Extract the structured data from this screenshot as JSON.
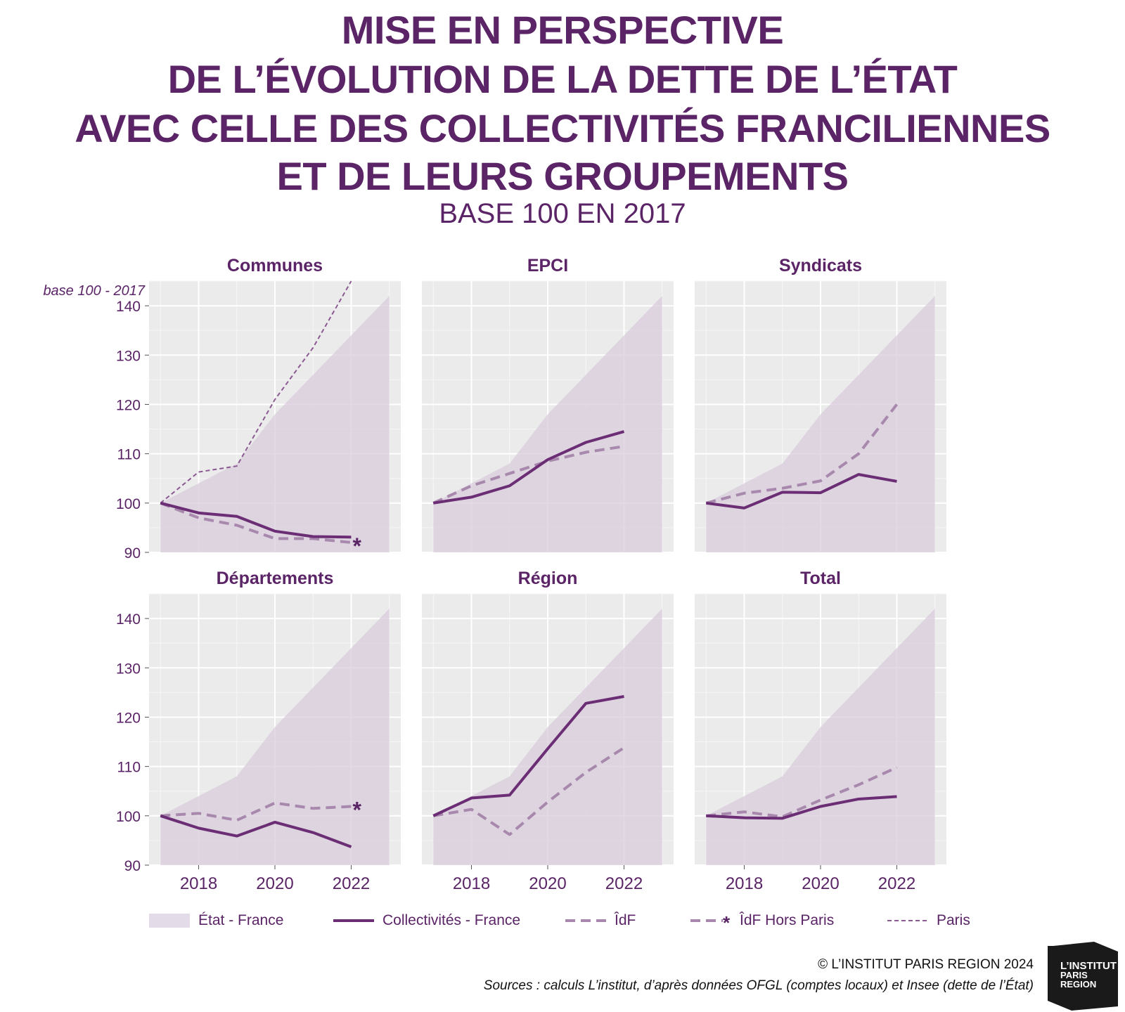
{
  "header": {
    "title_lines": [
      "MISE EN PERSPECTIVE",
      "DE L’ÉVOLUTION DE LA DETTE DE L’ÉTAT",
      "AVEC CELLE DES COLLECTIVITÉS FRANCILIENNES",
      "ET DE LEURS GROUPEMENTS"
    ],
    "subtitle": "BASE 100 EN 2017"
  },
  "colors": {
    "primary": "#5a2466",
    "line_collectivites": "#6b2d74",
    "line_idf": "#a889ad",
    "line_paris": "#8b5a92",
    "area_etat": "#d8ccdc",
    "panel_bg": "#ebebeb",
    "grid": "#ffffff"
  },
  "chart_data": {
    "type": "line",
    "layout": "small-multiples 2x3",
    "ylabel": "base 100 - 2017",
    "ylim": [
      90,
      145
    ],
    "xlim": [
      2016.7,
      2023.3
    ],
    "yticks": [
      90,
      100,
      110,
      120,
      130,
      140
    ],
    "xticks": [
      2018,
      2020,
      2022
    ],
    "grid": true,
    "legend_position": "bottom",
    "legend": [
      {
        "key": "etat",
        "label": "État - France"
      },
      {
        "key": "coll",
        "label": "Collectivités - France"
      },
      {
        "key": "idf",
        "label": "ÎdF"
      },
      {
        "key": "idfhp",
        "label": "ÎdF Hors Paris"
      },
      {
        "key": "paris",
        "label": "Paris"
      }
    ],
    "etat_france": {
      "x": [
        2017,
        2018,
        2019,
        2020,
        2021,
        2022,
        2023
      ],
      "values": [
        100,
        104,
        108,
        118,
        126,
        134,
        142
      ]
    },
    "panels": [
      {
        "title": "Communes",
        "series": [
          {
            "key": "coll",
            "x": [
              2017,
              2018,
              2019,
              2020,
              2021,
              2022
            ],
            "values": [
              100,
              98,
              97.3,
              94.3,
              93.2,
              93.1
            ]
          },
          {
            "key": "idfhp",
            "x": [
              2017,
              2018,
              2019,
              2020,
              2021,
              2022
            ],
            "values": [
              100,
              97,
              95.5,
              92.8,
              92.8,
              92
            ]
          },
          {
            "key": "paris",
            "x": [
              2017,
              2018,
              2019,
              2020,
              2021,
              2022
            ],
            "values": [
              100,
              106.3,
              107.5,
              121,
              131.5,
              145.5
            ]
          }
        ],
        "marker_star_on": "idfhp"
      },
      {
        "title": "EPCI",
        "series": [
          {
            "key": "coll",
            "x": [
              2017,
              2018,
              2019,
              2020,
              2021,
              2022
            ],
            "values": [
              100,
              101.2,
              103.5,
              108.8,
              112.3,
              114.5
            ]
          },
          {
            "key": "idf",
            "x": [
              2017,
              2018,
              2019,
              2020,
              2021,
              2022
            ],
            "values": [
              100,
              103.5,
              106,
              108.5,
              110.3,
              111.5
            ]
          }
        ]
      },
      {
        "title": "Syndicats",
        "series": [
          {
            "key": "coll",
            "x": [
              2017,
              2018,
              2019,
              2020,
              2021,
              2022
            ],
            "values": [
              100,
              99,
              102.2,
              102.1,
              105.8,
              104.4
            ]
          },
          {
            "key": "idf",
            "x": [
              2017,
              2018,
              2019,
              2020,
              2021,
              2022
            ],
            "values": [
              100,
              102,
              103,
              104.5,
              110,
              120
            ]
          }
        ]
      },
      {
        "title": "Départements",
        "series": [
          {
            "key": "coll",
            "x": [
              2017,
              2018,
              2019,
              2020,
              2021,
              2022
            ],
            "values": [
              100,
              97.5,
              95.9,
              98.7,
              96.6,
              93.7
            ]
          },
          {
            "key": "idfhp",
            "x": [
              2017,
              2018,
              2019,
              2020,
              2021,
              2022
            ],
            "values": [
              100,
              100.5,
              99.1,
              102.6,
              101.5,
              101.9
            ]
          }
        ],
        "marker_star_on": "idfhp"
      },
      {
        "title": "Région",
        "series": [
          {
            "key": "coll",
            "x": [
              2017,
              2018,
              2019,
              2020,
              2021,
              2022
            ],
            "values": [
              100,
              103.6,
              104.2,
              113.6,
              122.8,
              124.2
            ]
          },
          {
            "key": "idf",
            "x": [
              2017,
              2018,
              2019,
              2020,
              2021,
              2022
            ],
            "values": [
              100,
              101.3,
              96.2,
              102.8,
              108.8,
              113.8
            ]
          }
        ]
      },
      {
        "title": "Total",
        "series": [
          {
            "key": "coll",
            "x": [
              2017,
              2018,
              2019,
              2020,
              2021,
              2022
            ],
            "values": [
              100,
              99.6,
              99.5,
              101.9,
              103.4,
              103.9
            ]
          },
          {
            "key": "idf",
            "x": [
              2017,
              2018,
              2019,
              2020,
              2021,
              2022
            ],
            "values": [
              100,
              100.8,
              99.8,
              103.2,
              106.3,
              109.8
            ]
          }
        ]
      }
    ]
  },
  "footer": {
    "copyright": "© L’INSTITUT PARIS REGION 2024",
    "sources": "Sources : calculs L’institut, d’après données OFGL (comptes locaux) et Insee (dette de l’État)"
  },
  "logo": {
    "line1": "L’INSTITUT",
    "line2": "PARIS",
    "line3": "REGION"
  }
}
